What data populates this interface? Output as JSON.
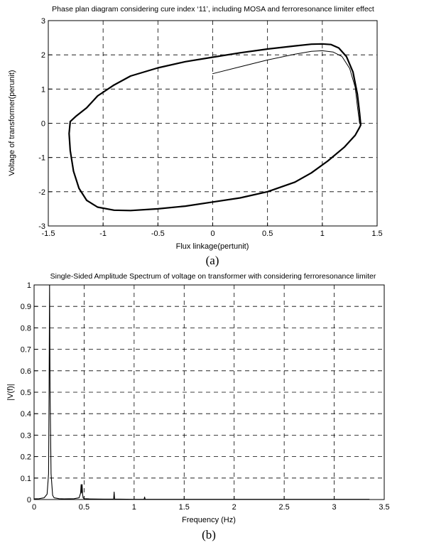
{
  "chart_data": [
    {
      "type": "line",
      "title": "Phase plan diagram considering cure index ‘11’, including MOSA and ferroresonance limiter effect",
      "xlabel": "Flux linkage(pertunit)",
      "ylabel": "Voltage of transformer(perunit)",
      "caption": "(a)",
      "xlim": [
        -1.5,
        1.5
      ],
      "ylim": [
        -3,
        3
      ],
      "xticks": [
        "-1.5",
        "-1",
        "-0.5",
        "0",
        "0.5",
        "1",
        "1.5"
      ],
      "yticks": [
        "-3",
        "-2",
        "-1",
        "0",
        "1",
        "2",
        "3"
      ],
      "grid": true,
      "series": [
        {
          "stroke_color": "#000000",
          "line_weight": "thick",
          "x": [
            -1.3,
            -1.25,
            -1.15,
            -1.05,
            -0.9,
            -0.75,
            -0.5,
            -0.25,
            0,
            0.25,
            0.5,
            0.75,
            0.9,
            1.0,
            1.08,
            1.15,
            1.22,
            1.28,
            1.32,
            1.34,
            1.35,
            1.34,
            1.3,
            1.2,
            1.05,
            0.9,
            0.75,
            0.5,
            0.25,
            0,
            -0.25,
            -0.5,
            -0.75,
            -0.9,
            -1.05,
            -1.15,
            -1.22,
            -1.27,
            -1.3,
            -1.31,
            -1.3
          ],
          "y": [
            0.05,
            0.2,
            0.45,
            0.8,
            1.12,
            1.38,
            1.62,
            1.8,
            1.93,
            2.06,
            2.17,
            2.26,
            2.31,
            2.32,
            2.3,
            2.2,
            1.95,
            1.5,
            0.85,
            0.3,
            -0.05,
            -0.12,
            -0.35,
            -0.7,
            -1.1,
            -1.45,
            -1.72,
            -2.0,
            -2.18,
            -2.3,
            -2.42,
            -2.5,
            -2.55,
            -2.54,
            -2.45,
            -2.25,
            -1.9,
            -1.4,
            -0.8,
            -0.3,
            0.05
          ]
        },
        {
          "stroke_color": "#000000",
          "line_weight": "thin",
          "x": [
            0,
            0,
            0.25,
            0.5,
            0.75,
            0.9,
            1.0,
            1.1,
            1.18,
            1.25,
            1.3,
            1.32,
            1.34,
            1.35
          ],
          "y": [
            1.45,
            1.45,
            1.65,
            1.85,
            2.02,
            2.1,
            2.12,
            2.08,
            1.95,
            1.6,
            1.05,
            0.5,
            0.0,
            -0.05
          ]
        }
      ]
    },
    {
      "type": "line",
      "title": "Single-Sided Amplitude Spectrum of voltage on transformer with considering ferroresonance limiter",
      "xlabel": "Frequency (Hz)",
      "ylabel": "|V(f)|",
      "caption": "(b)",
      "xlim": [
        0,
        3.5
      ],
      "ylim": [
        0,
        1
      ],
      "xticks": [
        "0",
        "0.5",
        "1",
        "1.5",
        "2",
        "2.5",
        "3",
        "3.5"
      ],
      "yticks": [
        "0",
        "0.1",
        "0.2",
        "0.3",
        "0.4",
        "0.5",
        "0.6",
        "0.7",
        "0.8",
        "0.9",
        "1"
      ],
      "grid": true,
      "series": [
        {
          "stroke_color": "#000000",
          "x": [
            0,
            0.05,
            0.1,
            0.13,
            0.145,
            0.15,
            0.155,
            0.16,
            0.17,
            0.185,
            0.2,
            0.25,
            0.3,
            0.4,
            0.45,
            0.465,
            0.47,
            0.475,
            0.48,
            0.485,
            0.49,
            0.5,
            0.55,
            0.7,
            0.795,
            0.8,
            0.805,
            0.85,
            1.0,
            1.1,
            1.105,
            1.11,
            1.2,
            2.0,
            3.0,
            3.35
          ],
          "y": [
            0.003,
            0.004,
            0.008,
            0.025,
            0.12,
            0.5,
            1.0,
            0.5,
            0.12,
            0.02,
            0.008,
            0.004,
            0.003,
            0.004,
            0.008,
            0.03,
            0.07,
            0.03,
            0.07,
            0.025,
            0.008,
            0.004,
            0.003,
            0.002,
            0.002,
            0.035,
            0.002,
            0.002,
            0.001,
            0.001,
            0.012,
            0.001,
            0.001,
            0.001,
            0.001,
            0.001
          ]
        }
      ]
    }
  ]
}
